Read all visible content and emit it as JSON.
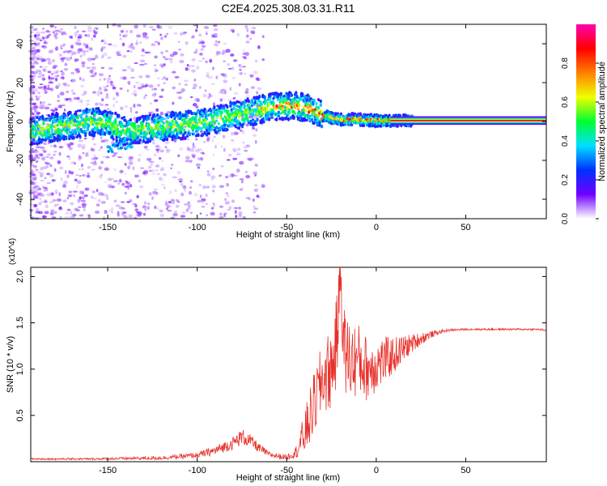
{
  "chart_data": [
    {
      "type": "heatmap",
      "title": "C2E4.2025.308.03.31.R11",
      "xlabel": "Height of straight line (km)",
      "ylabel": "Frequency (Hz)",
      "xlim": [
        -193,
        95
      ],
      "ylim": [
        -50,
        50
      ],
      "xticks": [
        -150,
        -100,
        -50,
        0,
        50
      ],
      "yticks": [
        -40,
        -20,
        0,
        20,
        40
      ],
      "colorbar": {
        "label": "Normalized spectral amplitude",
        "range": [
          0,
          1
        ],
        "ticks": [
          "0.0",
          "0.2",
          "0.4",
          "0.6",
          "0.8"
        ],
        "colormap": [
          "#ffffff",
          "#7000ff",
          "#0030ff",
          "#00e0ff",
          "#00ff30",
          "#f0ff00",
          "#ff8000",
          "#ff0000",
          "#ff00b0"
        ]
      },
      "ridge": {
        "x": [
          -190,
          -180,
          -170,
          -160,
          -150,
          -140,
          -130,
          -120,
          -110,
          -100,
          -90,
          -80,
          -70,
          -60,
          -55,
          -50,
          -45,
          -40,
          -35,
          -30,
          -25,
          -20,
          -15,
          -10,
          -5,
          0,
          5,
          10,
          15,
          20,
          30,
          40,
          50,
          60,
          70,
          80,
          90,
          95
        ],
        "freq": [
          -5,
          -3,
          -2,
          0,
          -1,
          -5,
          -4,
          -3,
          -2,
          -1,
          1,
          3,
          5,
          7,
          8,
          8,
          8,
          7,
          6,
          3,
          2,
          1,
          1,
          1,
          0.5,
          0.5,
          0.5,
          0.5,
          0.5,
          0.5,
          0.5,
          0.5,
          0.5,
          0.5,
          0.5,
          0.5,
          0.5,
          0.5
        ],
        "secondary": {
          "x": [
            -150,
            -145,
            -140,
            -136
          ],
          "freq": [
            -14,
            -13,
            -12,
            -11
          ]
        }
      }
    },
    {
      "type": "line",
      "xlabel": "Height of straight line (km)",
      "ylabel": "SNR (10 * v/v)",
      "y_multiplier": "(x10^4)",
      "xlim": [
        -193,
        95
      ],
      "ylim": [
        0,
        2.1
      ],
      "xticks": [
        -150,
        -100,
        -50,
        0,
        50
      ],
      "yticks": [
        "0.5",
        "1.0",
        "1.5",
        "2.0"
      ],
      "color": "#e8302a",
      "envelope_x": [
        -193,
        -160,
        -120,
        -100,
        -90,
        -80,
        -75,
        -70,
        -65,
        -60,
        -55,
        -50,
        -45,
        -40,
        -35,
        -30,
        -25,
        -22,
        -20,
        -18,
        -15,
        -10,
        -5,
        0,
        5,
        10,
        15,
        20,
        25,
        30,
        35,
        40,
        50,
        60,
        70,
        80,
        90,
        95
      ],
      "envelope_y": [
        0.03,
        0.03,
        0.04,
        0.07,
        0.12,
        0.2,
        0.27,
        0.22,
        0.14,
        0.08,
        0.06,
        0.05,
        0.1,
        0.3,
        0.6,
        0.9,
        1.0,
        1.3,
        2.1,
        1.2,
        1.1,
        1.1,
        1.0,
        1.05,
        1.1,
        1.15,
        1.22,
        1.28,
        1.33,
        1.37,
        1.4,
        1.42,
        1.43,
        1.43,
        1.43,
        1.43,
        1.43,
        1.42
      ],
      "noise_amplitude": [
        0.01,
        0.01,
        0.02,
        0.03,
        0.05,
        0.07,
        0.09,
        0.07,
        0.05,
        0.03,
        0.03,
        0.03,
        0.06,
        0.25,
        0.35,
        0.4,
        0.45,
        0.5,
        0.3,
        0.5,
        0.45,
        0.4,
        0.35,
        0.3,
        0.25,
        0.2,
        0.15,
        0.1,
        0.07,
        0.04,
        0.02,
        0.015,
        0.01,
        0.01,
        0.01,
        0.01,
        0.01,
        0.01
      ]
    }
  ]
}
